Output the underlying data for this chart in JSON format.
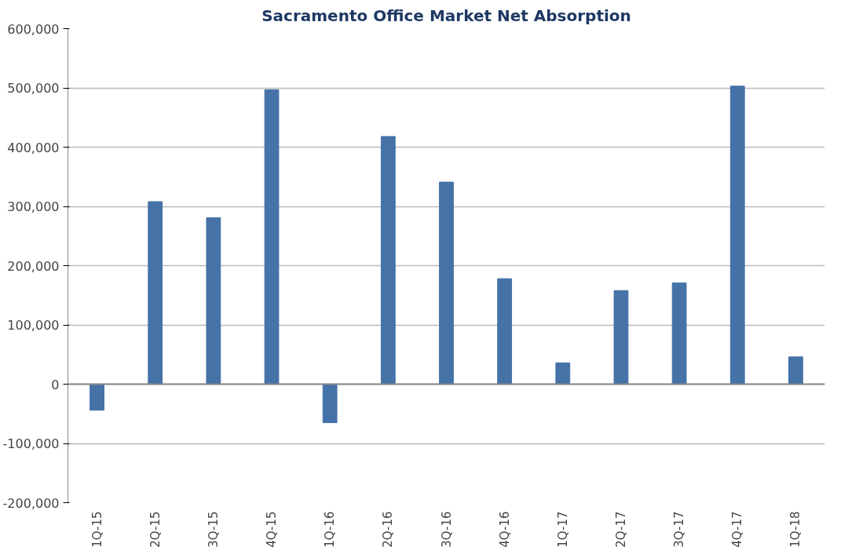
{
  "chart_data": {
    "type": "bar",
    "title": "Sacramento Office Market Net Absorption",
    "categories": [
      "1Q-15",
      "2Q-15",
      "3Q-15",
      "4Q-15",
      "1Q-16",
      "2Q-16",
      "3Q-16",
      "4Q-16",
      "1Q-17",
      "2Q-17",
      "3Q-17",
      "4Q-17",
      "1Q-18"
    ],
    "values": [
      -44000,
      308000,
      281000,
      497000,
      -65000,
      418000,
      341000,
      178000,
      36000,
      158000,
      171000,
      503000,
      46000
    ],
    "color": "#4572a7",
    "ylim": [
      -200000,
      600000
    ],
    "yticks": [
      {
        "value": -200000,
        "label": "-200,000"
      },
      {
        "value": -100000,
        "label": "-100,000"
      },
      {
        "value": 0,
        "label": "0"
      },
      {
        "value": 100000,
        "label": "100,000"
      },
      {
        "value": 200000,
        "label": "200,000"
      },
      {
        "value": 300000,
        "label": "300,000"
      },
      {
        "value": 400000,
        "label": "400,000"
      },
      {
        "value": 500000,
        "label": "500,000"
      },
      {
        "value": 600000,
        "label": "600,000"
      }
    ],
    "grid": "y"
  }
}
